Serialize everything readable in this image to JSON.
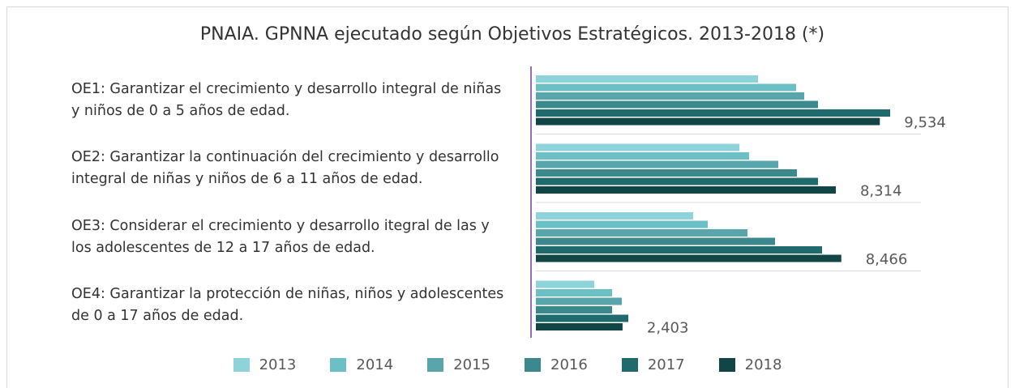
{
  "chart_data": {
    "type": "bar",
    "orientation": "horizontal",
    "title": "PNAIA. GPNNA ejecutado según Objetivos Estratégicos. 2013-2018 (*)",
    "categories": [
      "OE1: Garantizar el crecimiento y desarrollo integral de niñas y niños de 0 a 5 años de edad.",
      "OE2: Garantizar la continuación del crecimiento y desarrollo integral de niñas y niños de 6 a 11 años de edad.",
      "OE3: Considerar el crecimiento y desarrollo itegral de las y los adolescentes de 12 a 17 años de edad.",
      "OE4: Garantizar la protección de niñas, niños y adolescentes de 0 a 17 años de edad."
    ],
    "series": [
      {
        "name": "2013",
        "color": "#8ed3d9",
        "values": [
          6157,
          5640,
          4360,
          1618
        ]
      },
      {
        "name": "2014",
        "color": "#6dbfc6",
        "values": [
          7213,
          5910,
          4764,
          2112
        ]
      },
      {
        "name": "2015",
        "color": "#58a5ac",
        "values": [
          7438,
          6719,
          5865,
          2382
        ]
      },
      {
        "name": "2016",
        "color": "#3b898c",
        "values": [
          7820,
          7236,
          6629,
          2112
        ]
      },
      {
        "name": "2017",
        "color": "#1f6a6c",
        "values": [
          9820,
          7820,
          7933,
          2562
        ]
      },
      {
        "name": "2018",
        "color": "#124545",
        "values": [
          9534,
          8314,
          8466,
          2403
        ],
        "value_labels": [
          "9,534",
          "8,314",
          "8,466",
          "2,403"
        ]
      }
    ],
    "legend": "bottom"
  }
}
